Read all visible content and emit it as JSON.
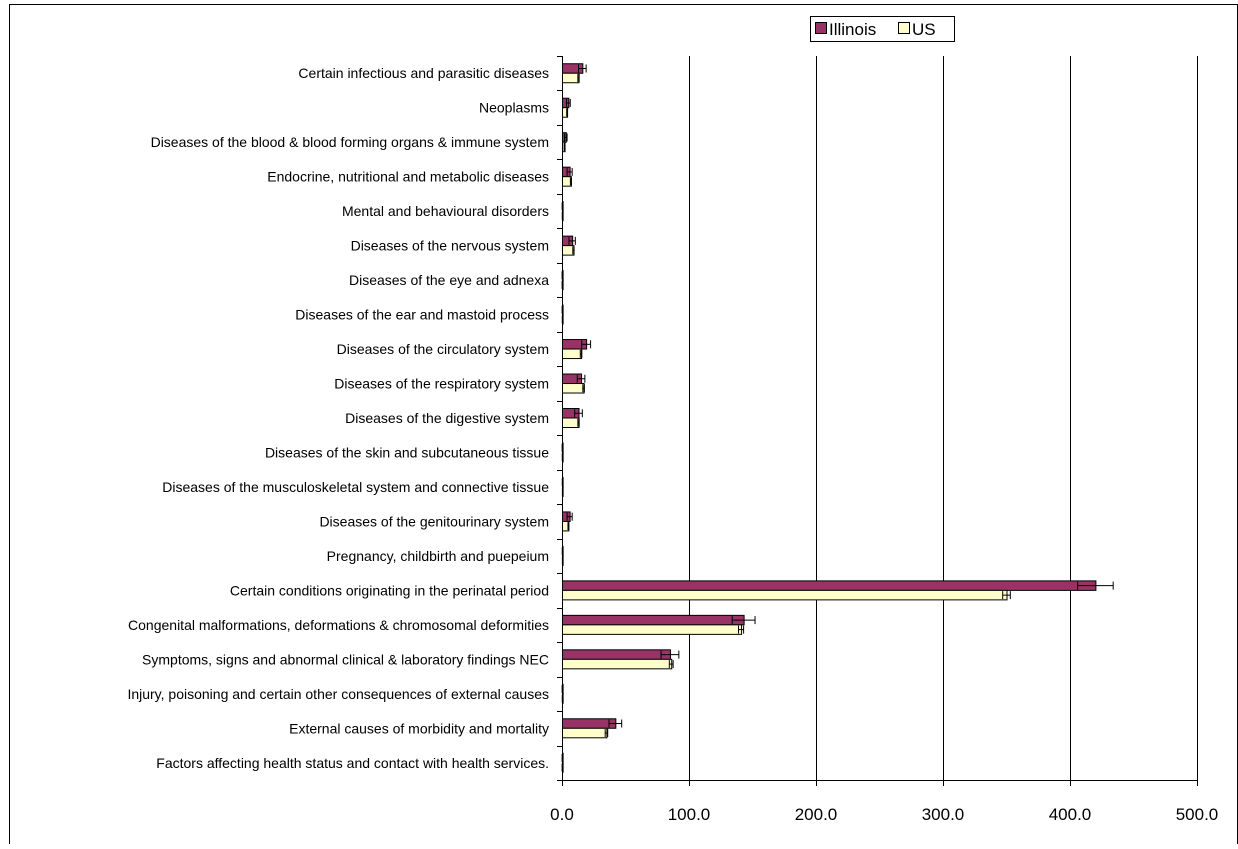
{
  "chart_data": {
    "type": "bar",
    "orientation": "horizontal",
    "categories": [
      "Certain infectious and parasitic diseases",
      "Neoplasms",
      "Diseases of the blood & blood forming organs & immune system",
      "Endocrine, nutritional and metabolic diseases",
      "Mental and behavioural disorders",
      "Diseases of the nervous system",
      "Diseases of the eye and adnexa",
      "Diseases of the ear and mastoid process",
      "Diseases of the circulatory system",
      "Diseases of the respiratory system",
      "Diseases of the digestive system",
      "Diseases of the skin and subcutaneous tissue",
      "Diseases of the musculoskeletal system and connective tissue",
      "Diseases of the genitourinary system",
      "Pregnancy, childbirth and puepeium",
      "Certain conditions originating in the perinatal period",
      "Congenital malformations, deformations & chromosomal deformities",
      "Symptoms, signs and abnormal clinical & laboratory findings NEC",
      "Injury, poisoning and certain other consequences of external causes",
      "External causes of morbidity and mortality",
      "Factors affecting health status and contact with health services."
    ],
    "series": [
      {
        "name": "Illinois",
        "color": "#993366",
        "values": [
          16,
          5,
          3,
          6,
          0.3,
          8,
          0.2,
          0.3,
          19,
          15,
          13,
          0.3,
          0.4,
          6,
          0.4,
          420,
          143,
          85,
          0.3,
          42,
          0.2
        ],
        "error": [
          3,
          1.5,
          1,
          2,
          0.2,
          2.5,
          0.1,
          0.2,
          3.5,
          3,
          3,
          0.2,
          0.2,
          2,
          0.2,
          14,
          9,
          7,
          0.2,
          5,
          0.1
        ]
      },
      {
        "name": "US",
        "color": "#FFFFCC",
        "values": [
          13,
          4,
          2,
          7,
          0.3,
          9,
          0.2,
          0.3,
          15,
          17,
          13,
          0.3,
          0.4,
          5,
          0.4,
          350,
          141,
          86,
          0.3,
          35,
          0.2
        ],
        "error": [
          0.5,
          0.3,
          0.3,
          0.4,
          0.1,
          0.5,
          0.1,
          0.1,
          0.6,
          0.6,
          0.5,
          0.1,
          0.1,
          0.3,
          0.1,
          3,
          2,
          1.5,
          0.1,
          1,
          0.1
        ]
      }
    ],
    "xlim": [
      0,
      500
    ],
    "xticks": [
      "0.0",
      "100.0",
      "200.0",
      "300.0",
      "400.0",
      "500.0"
    ],
    "xtick_values": [
      0,
      100,
      200,
      300,
      400,
      500
    ],
    "xgrid": true,
    "legend": "top-center",
    "title": "",
    "xlabel": "",
    "ylabel": ""
  }
}
